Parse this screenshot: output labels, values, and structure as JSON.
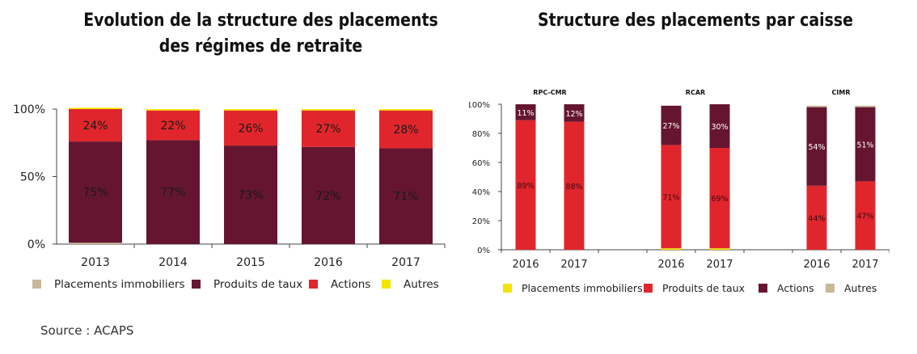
{
  "colors": {
    "immobilier": "#c8b89a",
    "taux": "#651530",
    "actions": "#e0262c",
    "autres": "#f2e600"
  },
  "chart_data": [
    {
      "type": "bar",
      "stacked": true,
      "title": "Evolution de la structure des placements des régimes de retraite",
      "title_lines": [
        "Evolution de la structure des placements",
        "des régimes de retraite"
      ],
      "categories": [
        "2013",
        "2014",
        "2015",
        "2016",
        "2017"
      ],
      "ylim": [
        0,
        100
      ],
      "yticks": [
        "0%",
        "50%",
        "100%"
      ],
      "series": [
        {
          "name": "Placements immobiliers",
          "color": "#c8b89a",
          "values": [
            1,
            0,
            0,
            0,
            0
          ]
        },
        {
          "name": "Produits de taux",
          "color": "#651530",
          "values": [
            75,
            77,
            73,
            72,
            71
          ],
          "labels": [
            "75%",
            "77%",
            "73%",
            "72%",
            "71%"
          ]
        },
        {
          "name": "Actions",
          "color": "#e0262c",
          "values": [
            24,
            22,
            26,
            27,
            28
          ],
          "labels": [
            "24%",
            "22%",
            "26%",
            "27%",
            "28%"
          ]
        },
        {
          "name": "Autres",
          "color": "#f2e600",
          "values": [
            1,
            1,
            1,
            1,
            1
          ]
        }
      ],
      "legend": [
        "Placements immobiliers",
        "Produits de taux",
        "Actions",
        "Autres"
      ],
      "legend_position": "bottom"
    },
    {
      "type": "bar",
      "stacked": true,
      "title": "Structure des placements par caisse",
      "groups": [
        {
          "name": "RPC-CMR",
          "categories": [
            "2016",
            "2017"
          ],
          "values": {
            "immobilier": [
              0,
              0
            ],
            "taux": [
              89,
              88
            ],
            "actions": [
              11,
              12
            ],
            "autres": [
              0,
              0
            ]
          },
          "labels": {
            "taux": [
              "89%",
              "88%"
            ],
            "actions": [
              "11%",
              "12%"
            ]
          }
        },
        {
          "name": "RCAR",
          "categories": [
            "2016",
            "2017"
          ],
          "values": {
            "immobilier": [
              1,
              1
            ],
            "taux": [
              71,
              69
            ],
            "actions": [
              27,
              30
            ],
            "autres": [
              0,
              0
            ]
          },
          "labels": {
            "taux": [
              "71%",
              "69%"
            ],
            "actions": [
              "27%",
              "30%"
            ]
          }
        },
        {
          "name": "CIMR",
          "categories": [
            "2016",
            "2017"
          ],
          "values": {
            "immobilier": [
              0,
              0
            ],
            "taux": [
              44,
              47
            ],
            "actions": [
              54,
              51
            ],
            "autres": [
              1,
              1
            ]
          },
          "labels": {
            "taux": [
              "44%",
              "47%"
            ],
            "actions": [
              "54%",
              "51%"
            ]
          }
        }
      ],
      "ylim": [
        0,
        100
      ],
      "yticks": [
        "0%",
        "20%",
        "40%",
        "60%",
        "80%",
        "100%"
      ],
      "legend": [
        {
          "name": "Placements immobiliers",
          "color": "#f2e600"
        },
        {
          "name": "Produits de taux",
          "color": "#e0262c"
        },
        {
          "name": "Actions",
          "color": "#651530"
        },
        {
          "name": "Autres",
          "color": "#c8b89a"
        }
      ],
      "legend_position": "bottom"
    }
  ],
  "source": "Source : ACAPS"
}
